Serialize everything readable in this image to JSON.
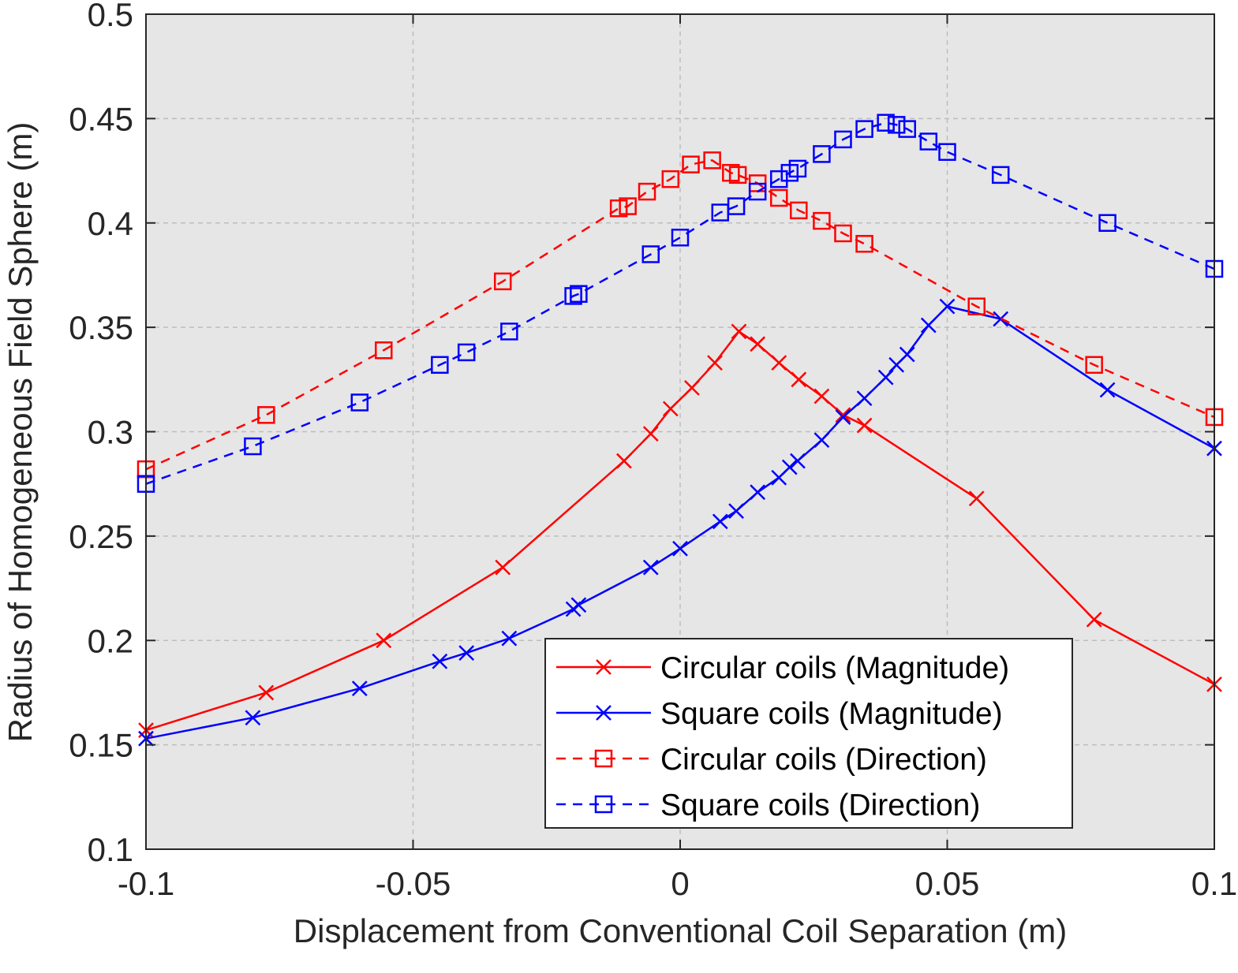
{
  "chart_data": {
    "type": "line",
    "title": "",
    "xlabel": "Displacement from Conventional Coil Separation (m)",
    "ylabel": "Radius of Homogeneous Field Sphere (m)",
    "xlim": [
      -0.1,
      0.1
    ],
    "ylim": [
      0.1,
      0.5
    ],
    "xticks": [
      -0.1,
      -0.05,
      0,
      0.05,
      0.1
    ],
    "xtick_labels": [
      "-0.1",
      "-0.05",
      "0",
      "0.05",
      "0.1"
    ],
    "yticks": [
      0.1,
      0.15,
      0.2,
      0.25,
      0.3,
      0.35,
      0.4,
      0.45,
      0.5
    ],
    "ytick_labels": [
      "0.1",
      "0.15",
      "0.2",
      "0.25",
      "0.3",
      "0.35",
      "0.4",
      "0.45",
      "0.5"
    ],
    "grid": true,
    "legend_position": "bottom-right",
    "series": [
      {
        "name": "Circular coils (Magnitude)",
        "color": "#ff0000",
        "line_style": "solid",
        "marker": "x",
        "x": [
          -0.1,
          -0.0775,
          -0.0555,
          -0.0332,
          -0.0105,
          -0.0055,
          -0.0018,
          0.0022,
          0.0065,
          0.011,
          0.0145,
          0.0185,
          0.0222,
          0.0265,
          0.0305,
          0.0345,
          0.0555,
          0.0775,
          0.1
        ],
        "y": [
          0.157,
          0.175,
          0.2,
          0.235,
          0.286,
          0.299,
          0.311,
          0.321,
          0.333,
          0.348,
          0.342,
          0.333,
          0.325,
          0.317,
          0.308,
          0.303,
          0.268,
          0.21,
          0.179
        ]
      },
      {
        "name": "Square coils (Magnitude)",
        "color": "#0000ff",
        "line_style": "solid",
        "marker": "x",
        "x": [
          -0.1,
          -0.08,
          -0.06,
          -0.045,
          -0.04,
          -0.032,
          -0.02,
          -0.019,
          -0.0055,
          0.0,
          0.0075,
          0.0105,
          0.0145,
          0.0185,
          0.0205,
          0.022,
          0.0265,
          0.0305,
          0.0345,
          0.0385,
          0.0405,
          0.0425,
          0.0465,
          0.05,
          0.06,
          0.08,
          0.1
        ],
        "y": [
          0.153,
          0.163,
          0.177,
          0.19,
          0.194,
          0.201,
          0.215,
          0.217,
          0.235,
          0.244,
          0.257,
          0.262,
          0.271,
          0.278,
          0.283,
          0.286,
          0.296,
          0.307,
          0.316,
          0.326,
          0.332,
          0.337,
          0.351,
          0.36,
          0.354,
          0.32,
          0.292
        ]
      },
      {
        "name": "Circular coils (Direction)",
        "color": "#ff0000",
        "line_style": "dashed",
        "marker": "square",
        "x": [
          -0.1,
          -0.0775,
          -0.0555,
          -0.0332,
          -0.0115,
          -0.0098,
          -0.0062,
          -0.0018,
          0.002,
          0.006,
          0.0095,
          0.0108,
          0.0145,
          0.0185,
          0.0222,
          0.0265,
          0.0305,
          0.0345,
          0.0555,
          0.0775,
          0.1
        ],
        "y": [
          0.282,
          0.308,
          0.339,
          0.372,
          0.407,
          0.408,
          0.415,
          0.421,
          0.428,
          0.43,
          0.424,
          0.423,
          0.419,
          0.412,
          0.406,
          0.401,
          0.395,
          0.39,
          0.36,
          0.332,
          0.307
        ]
      },
      {
        "name": "Square coils (Direction)",
        "color": "#0000ff",
        "line_style": "dashed",
        "marker": "square",
        "x": [
          -0.1,
          -0.08,
          -0.06,
          -0.045,
          -0.04,
          -0.032,
          -0.02,
          -0.019,
          -0.0055,
          0.0,
          0.0075,
          0.0105,
          0.0145,
          0.0185,
          0.0205,
          0.022,
          0.0265,
          0.0305,
          0.0345,
          0.0385,
          0.0405,
          0.0425,
          0.0465,
          0.05,
          0.06,
          0.08,
          0.1
        ],
        "y": [
          0.275,
          0.293,
          0.314,
          0.332,
          0.338,
          0.348,
          0.365,
          0.366,
          0.385,
          0.393,
          0.405,
          0.408,
          0.415,
          0.421,
          0.424,
          0.426,
          0.433,
          0.44,
          0.445,
          0.448,
          0.447,
          0.445,
          0.439,
          0.434,
          0.423,
          0.4,
          0.378
        ]
      }
    ]
  }
}
